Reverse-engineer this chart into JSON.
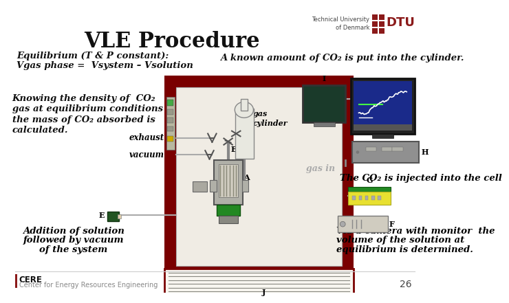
{
  "title": "VLE Procedure",
  "bg_color": "#ffffff",
  "subtitle1": "Equilibrium (T & P constant):",
  "subtitle2": "Vgas phase =  Vsystem – Vsolution",
  "right_top": "A known amount of CO₂ is put into the cylinder.",
  "left_texts": [
    "Knowing the density of  CO₂",
    "gas at equilibrium conditions",
    "the mass of CO₂ absorbed is",
    "calculated."
  ],
  "co2_inject": "The CO₂ is injected into the cell",
  "addition_texts": [
    "Addition of solution",
    "followed by vacuum",
    "of the system"
  ],
  "camera_texts": [
    "Via a camera with monitor  the",
    "volume of the solution at",
    "equilibrium is determined."
  ],
  "cere_text": "CERE",
  "cere_sub": "Center for Energy Resources Engineering",
  "page_num": "26",
  "dtu_color": "#8b1a1a",
  "red_border_color": "#7a0000",
  "apparatus_bg": "#c8b090",
  "inner_bg": "#e8e0d0"
}
